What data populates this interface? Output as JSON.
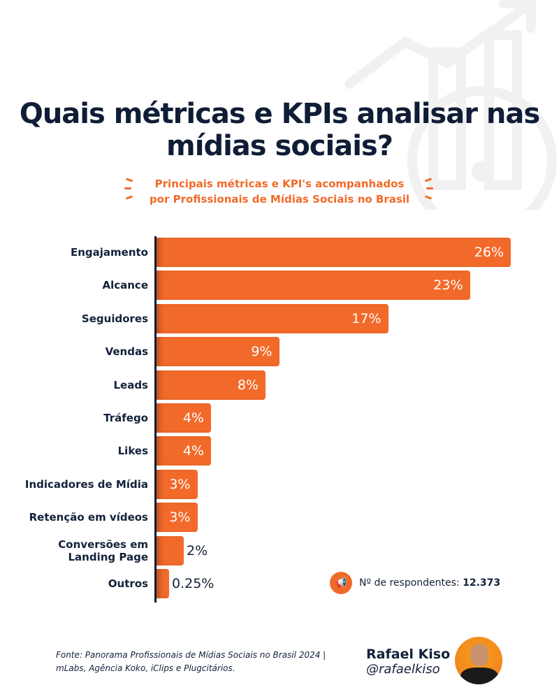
{
  "title": "Quais métricas e KPIs analisar nas mídias sociais?",
  "subtitle_line1": "Principais métricas e KPI's acompanhados",
  "subtitle_line2": "por Profissionais de Mídias Sociais no Brasil",
  "colors": {
    "bar": "#f26a2a",
    "text": "#0f1d36"
  },
  "respondents": {
    "icon": "megaphone-icon",
    "label": "Nº de respondentes:",
    "value": "12.373"
  },
  "source": "Fonte: Panorama Profissionais de Mídias Sociais no Brasil 2024 | mLabs, Agência Koko, iClips e Plugcitários.",
  "author": {
    "name": "Rafael Kiso",
    "handle": "@rafaelkiso"
  },
  "chart_data": {
    "type": "bar",
    "orientation": "horizontal",
    "categories": [
      "Engajamento",
      "Alcance",
      "Seguidores",
      "Vendas",
      "Leads",
      "Tráfego",
      "Likes",
      "Indicadores de Mídia",
      "Retenção em vídeos",
      "Conversões em Landing Page",
      "Outros"
    ],
    "values": [
      26,
      23,
      17,
      9,
      8,
      4,
      4,
      3,
      3,
      2,
      0.25
    ],
    "labels": [
      "26%",
      "23%",
      "17%",
      "9%",
      "8%",
      "4%",
      "4%",
      "3%",
      "3%",
      "2%",
      "0.25%"
    ],
    "unit": "%",
    "grid": false
  }
}
